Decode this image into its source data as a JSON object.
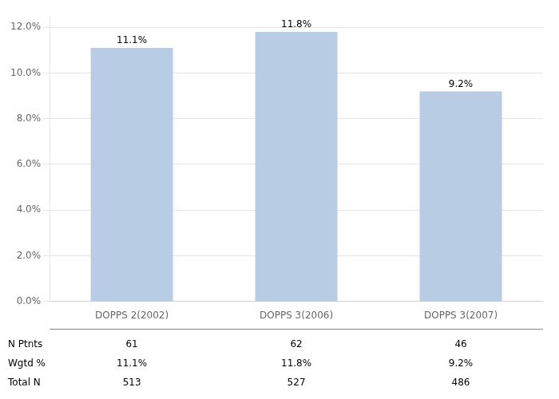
{
  "chart_data": {
    "type": "bar",
    "categories": [
      "DOPPS 2(2002)",
      "DOPPS 3(2006)",
      "DOPPS 3(2007)"
    ],
    "values": [
      11.1,
      11.8,
      9.2
    ],
    "value_labels": [
      "11.1%",
      "11.8%",
      "9.2%"
    ],
    "data_labels": true,
    "color": "#b8cce4",
    "ylim": [
      0,
      12.5
    ],
    "yticks": [
      {
        "value": 0,
        "label": "0.0%"
      },
      {
        "value": 2,
        "label": "2.0%"
      },
      {
        "value": 4,
        "label": "4.0%"
      },
      {
        "value": 6,
        "label": "6.0%"
      },
      {
        "value": 8,
        "label": "8.0%"
      },
      {
        "value": 10,
        "label": "10.0%"
      },
      {
        "value": 12,
        "label": "12.0%"
      }
    ],
    "grid": true,
    "table_row_labels": [
      "N Ptnts",
      "Wgtd %",
      "Total N"
    ],
    "table_data": [
      [
        "61",
        "62",
        "46"
      ],
      [
        "11.1%",
        "11.8%",
        "9.2%"
      ],
      [
        "513",
        "527",
        "486"
      ]
    ]
  }
}
